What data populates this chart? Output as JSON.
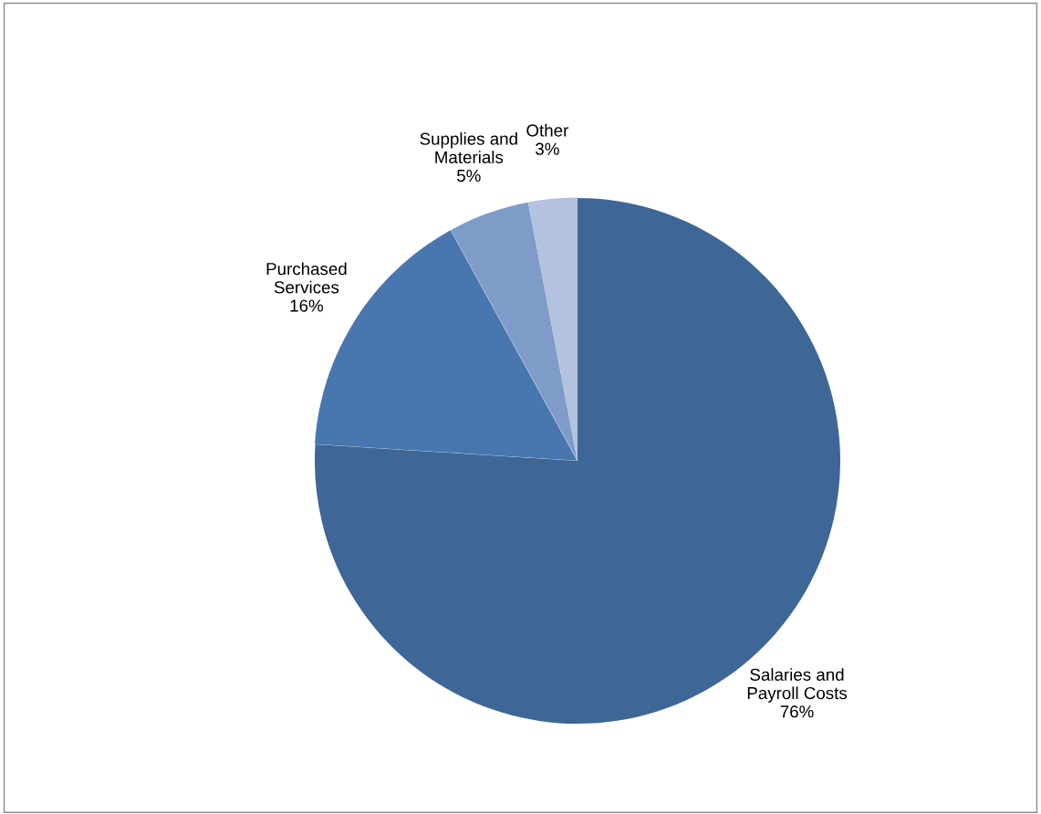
{
  "chart_data": {
    "type": "pie",
    "categories": [
      "Salaries and\nPayroll Costs",
      "Purchased\nServices",
      "Supplies and\nMaterials",
      "Other"
    ],
    "values": [
      76,
      16,
      5,
      3
    ],
    "value_labels": [
      "76%",
      "16%",
      "5%",
      "3%"
    ],
    "colors": [
      "#3e6696",
      "#4877b0",
      "#7f9cc8",
      "#b3c2de"
    ],
    "legend": false
  }
}
